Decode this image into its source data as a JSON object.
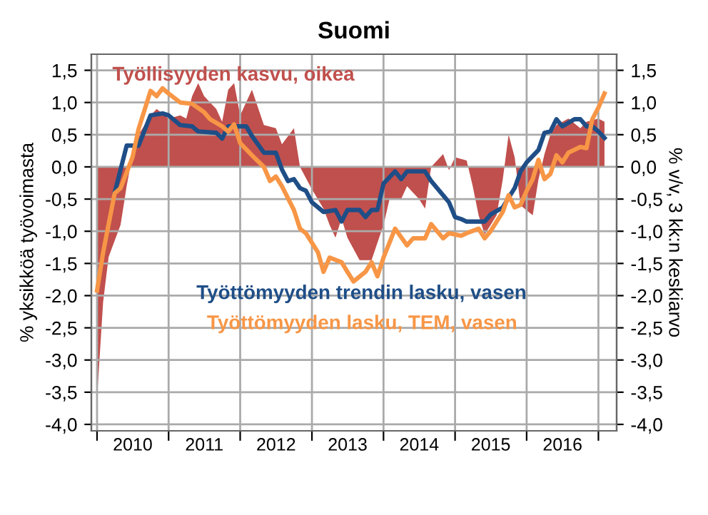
{
  "chart_data": {
    "type": "line",
    "title": "Suomi",
    "ylabel": "% yksikköä työvoimasta",
    "y2label": "% v/v, 3 kk:n keskiarvo",
    "xlim": [
      "2009-12-03",
      "2017-04-04"
    ],
    "xticks": [
      {
        "value": "2010-01-01",
        "label": null
      },
      {
        "value": "2010-07-02",
        "label": "2010"
      },
      {
        "value": "2011-01-01",
        "label": null
      },
      {
        "value": "2011-07-02",
        "label": "2011"
      },
      {
        "value": "2012-01-01",
        "label": null
      },
      {
        "value": "2012-07-02",
        "label": "2012"
      },
      {
        "value": "2013-01-01",
        "label": null
      },
      {
        "value": "2013-07-02",
        "label": "2013"
      },
      {
        "value": "2014-01-01",
        "label": null
      },
      {
        "value": "2014-07-02",
        "label": "2014"
      },
      {
        "value": "2015-01-01",
        "label": null
      },
      {
        "value": "2015-07-02",
        "label": "2015"
      },
      {
        "value": "2016-01-01",
        "label": null
      },
      {
        "value": "2016-07-02",
        "label": "2016"
      },
      {
        "value": "2017-01-01",
        "label": null
      }
    ],
    "ylim": [
      -4.1,
      1.75
    ],
    "yticks": [
      {
        "value": -4.0,
        "label": "-4,0"
      },
      {
        "value": -3.5,
        "label": "-3,5"
      },
      {
        "value": -3.0,
        "label": "-3,0"
      },
      {
        "value": -2.5,
        "label": "-2,5"
      },
      {
        "value": -2.0,
        "label": "-2,0"
      },
      {
        "value": -1.5,
        "label": "-1,5"
      },
      {
        "value": -1.0,
        "label": "-1,0"
      },
      {
        "value": -0.5,
        "label": "-0,5"
      },
      {
        "value": 0.0,
        "label": "0,0"
      },
      {
        "value": 0.5,
        "label": "0,5"
      },
      {
        "value": 1.0,
        "label": "1,0"
      },
      {
        "value": 1.5,
        "label": "1,5"
      }
    ],
    "y2lim": [
      -4.1,
      1.75
    ],
    "y2ticks": [
      {
        "value": -4.0,
        "label": "-4,0"
      },
      {
        "value": -3.5,
        "label": "-3,5"
      },
      {
        "value": -3.0,
        "label": "-3,0"
      },
      {
        "value": -2.5,
        "label": "-2,5"
      },
      {
        "value": -2.0,
        "label": "-2,0"
      },
      {
        "value": -1.5,
        "label": "-1,5"
      },
      {
        "value": -1.0,
        "label": "-1,0"
      },
      {
        "value": -0.5,
        "label": "-0,5"
      },
      {
        "value": 0.0,
        "label": "0,0"
      },
      {
        "value": 0.5,
        "label": "0,5"
      },
      {
        "value": 1.0,
        "label": "1,0"
      },
      {
        "value": 1.5,
        "label": "1,5"
      }
    ],
    "grid": true,
    "legend": false,
    "line_style": "solid",
    "marker": "none",
    "series": [
      {
        "name": "Työllisyyden kasvu, oikea",
        "type": "area",
        "axis": "y2",
        "color": "#c0504d",
        "x": [
          "2010-01",
          "2010-02",
          "2010-03",
          "2010-05",
          "2010-06",
          "2010-07",
          "2010-08",
          "2010-10",
          "2010-11",
          "2011-01",
          "2011-03",
          "2011-04",
          "2011-05",
          "2011-06",
          "2011-07",
          "2011-09",
          "2011-10",
          "2011-11",
          "2011-12",
          "2012-01",
          "2012-03",
          "2012-05",
          "2012-07",
          "2012-08",
          "2012-10",
          "2012-11",
          "2013-01",
          "2013-03",
          "2013-04",
          "2013-05",
          "2013-06",
          "2013-07",
          "2013-09",
          "2013-11",
          "2014-01",
          "2014-02",
          "2014-04",
          "2014-05",
          "2014-07",
          "2014-08",
          "2014-09",
          "2014-11",
          "2014-12",
          "2015-01",
          "2015-03",
          "2015-04",
          "2015-05",
          "2015-06",
          "2015-08",
          "2015-09",
          "2015-10",
          "2015-11",
          "2015-12",
          "2016-02",
          "2016-03",
          "2016-04",
          "2016-05",
          "2016-06",
          "2016-08",
          "2016-10",
          "2016-11",
          "2017-01",
          "2017-02"
        ],
        "values": [
          -3.6,
          -2.1,
          -1.4,
          -0.9,
          -0.3,
          0.2,
          0.5,
          0.8,
          0.9,
          0.75,
          0.8,
          0.75,
          1.1,
          1.3,
          1.1,
          0.9,
          0.7,
          1.2,
          1.3,
          0.8,
          1.2,
          0.65,
          0.6,
          0.35,
          0.6,
          0.0,
          -0.35,
          -0.65,
          -0.9,
          -1.1,
          -0.8,
          -1.1,
          -1.45,
          -1.45,
          -0.9,
          -0.5,
          -0.5,
          -0.3,
          -0.5,
          -0.65,
          0.0,
          0.2,
          -0.05,
          0.15,
          0.1,
          -0.3,
          -0.75,
          -1.05,
          -0.75,
          -0.2,
          0.5,
          0.15,
          -0.6,
          -0.75,
          -0.2,
          0.2,
          0.5,
          0.65,
          0.75,
          0.6,
          0.7,
          0.75,
          0.7
        ]
      },
      {
        "name": "Työttömyyden trendin lasku, vasen",
        "color": "#1f4e87",
        "x": [
          "2010-04",
          "2010-06",
          "2010-08",
          "2010-10",
          "2010-12",
          "2011-01",
          "2011-03",
          "2011-05",
          "2011-06",
          "2011-09",
          "2011-10",
          "2011-11",
          "2012-02",
          "2012-03",
          "2012-05",
          "2012-07",
          "2012-08",
          "2012-09",
          "2012-10",
          "2012-11",
          "2012-12",
          "2013-01",
          "2013-03",
          "2013-05",
          "2013-06",
          "2013-07",
          "2013-09",
          "2013-10",
          "2013-11",
          "2013-12",
          "2014-01",
          "2014-03",
          "2014-04",
          "2014-05",
          "2014-08",
          "2014-09",
          "2014-11",
          "2014-12",
          "2015-01",
          "2015-02",
          "2015-03",
          "2015-06",
          "2015-07",
          "2015-09",
          "2015-10",
          "2015-11",
          "2015-12",
          "2016-01",
          "2016-03",
          "2016-04",
          "2016-05",
          "2016-06",
          "2016-07",
          "2016-09",
          "2016-10",
          "2016-11",
          "2016-12",
          "2017-01",
          "2017-02"
        ],
        "values": [
          -0.4,
          0.33,
          0.33,
          0.8,
          0.83,
          0.8,
          0.65,
          0.63,
          0.55,
          0.53,
          0.44,
          0.63,
          0.63,
          0.48,
          0.22,
          0.22,
          -0.04,
          -0.22,
          -0.19,
          -0.33,
          -0.37,
          -0.55,
          -0.7,
          -0.67,
          -0.85,
          -0.67,
          -0.67,
          -0.78,
          -0.67,
          -0.67,
          -0.26,
          -0.07,
          -0.19,
          -0.07,
          -0.07,
          -0.22,
          -0.44,
          -0.55,
          -0.78,
          -0.81,
          -0.85,
          -0.85,
          -0.74,
          -0.63,
          -0.48,
          -0.33,
          -0.07,
          0.07,
          0.26,
          0.53,
          0.55,
          0.74,
          0.63,
          0.74,
          0.74,
          0.63,
          0.63,
          0.55,
          0.45
        ]
      },
      {
        "name": "Työttömyyden lasku, TEM, vasen",
        "color": "#f79646",
        "x": [
          "2010-01",
          "2010-02",
          "2010-04",
          "2010-05",
          "2010-07",
          "2010-08",
          "2010-10",
          "2010-11",
          "2010-12",
          "2011-01",
          "2011-03",
          "2011-05",
          "2011-07",
          "2011-08",
          "2011-10",
          "2011-11",
          "2011-12",
          "2012-01",
          "2012-03",
          "2012-05",
          "2012-06",
          "2012-07",
          "2012-08",
          "2012-10",
          "2012-11",
          "2012-12",
          "2013-02",
          "2013-03",
          "2013-04",
          "2013-06",
          "2013-07",
          "2013-08",
          "2013-10",
          "2013-11",
          "2013-12",
          "2014-01",
          "2014-03",
          "2014-05",
          "2014-06",
          "2014-08",
          "2014-09",
          "2014-11",
          "2014-12",
          "2015-02",
          "2015-03",
          "2015-05",
          "2015-06",
          "2015-07",
          "2015-09",
          "2015-10",
          "2015-11",
          "2015-12",
          "2016-01",
          "2016-02",
          "2016-03",
          "2016-04",
          "2016-05",
          "2016-06",
          "2016-07",
          "2016-08",
          "2016-10",
          "2016-11",
          "2016-12",
          "2017-01",
          "2017-02"
        ],
        "values": [
          -1.92,
          -1.33,
          -0.41,
          -0.33,
          0.15,
          0.59,
          1.18,
          1.1,
          1.22,
          1.14,
          1.0,
          0.98,
          0.85,
          0.74,
          0.63,
          0.55,
          0.66,
          0.37,
          0.18,
          0.0,
          -0.22,
          -0.15,
          -0.3,
          -0.67,
          -0.96,
          -1.03,
          -1.33,
          -1.63,
          -1.41,
          -1.48,
          -1.63,
          -1.78,
          -1.63,
          -1.48,
          -1.7,
          -1.41,
          -0.96,
          -1.22,
          -1.11,
          -1.11,
          -0.89,
          -1.11,
          -1.03,
          -1.07,
          -1.03,
          -0.96,
          -1.11,
          -1.0,
          -0.7,
          -0.44,
          -0.63,
          -0.59,
          -0.37,
          -0.19,
          0.11,
          -0.19,
          -0.11,
          0.18,
          0.07,
          0.22,
          0.31,
          0.29,
          0.74,
          0.92,
          1.14
        ]
      }
    ]
  }
}
